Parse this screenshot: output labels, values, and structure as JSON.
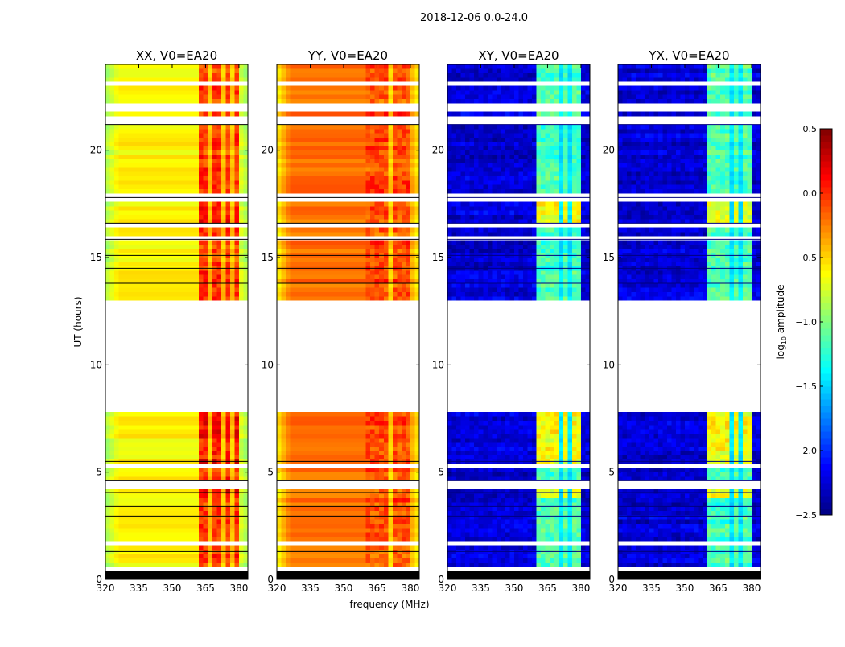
{
  "chart_data": {
    "type": "heatmap",
    "suptitle": "2018-12-06 0.0-24.0",
    "xlabel": "frequency (MHz)",
    "ylabel": "UT (hours)",
    "xlim": [
      320,
      384
    ],
    "ylim": [
      0,
      24
    ],
    "x_ticks": [
      320,
      335,
      350,
      365,
      380
    ],
    "y_ticks": [
      0,
      5,
      10,
      15,
      20
    ],
    "colorbar": {
      "label": "log₁₀ amplitude",
      "label_main": "log",
      "label_sub": "10",
      "label_rest": " amplitude",
      "colormap": "jet",
      "vmin": -2.5,
      "vmax": 0.5,
      "ticks": [
        0.5,
        0.0,
        -0.5,
        -1.0,
        -1.5,
        -2.0,
        -2.5
      ],
      "tick_labels": [
        "0.5",
        "0.0",
        "−0.5",
        "−1.0",
        "−1.5",
        "−2.0",
        "−2.5"
      ]
    },
    "data_segments_hours": [
      [
        0.55,
        7.75
      ],
      [
        13.0,
        15.85
      ],
      [
        16.0,
        21.2
      ],
      [
        21.55,
        21.75
      ],
      [
        22.25,
        24.0
      ]
    ],
    "flagged_white_hours": [
      [
        5.13,
        5.5
      ],
      [
        4.3,
        4.55
      ],
      [
        1.2,
        1.3
      ],
      [
        1.7,
        1.8
      ],
      [
        2.0,
        2.08
      ],
      [
        3.0,
        3.07
      ],
      [
        3.2,
        3.28
      ],
      [
        0.85,
        0.9
      ],
      [
        13.5,
        13.6
      ],
      [
        14.2,
        14.27
      ],
      [
        17.6,
        18.0
      ],
      [
        18.5,
        18.56
      ],
      [
        19.2,
        19.26
      ],
      [
        23.0,
        23.1
      ],
      [
        23.2,
        23.28
      ],
      [
        16.4,
        16.5
      ]
    ],
    "masked_black_hours": [
      [
        0.05,
        0.35
      ]
    ],
    "black_lines_hours": [
      1.3,
      2.95,
      3.4,
      4.05,
      4.6,
      5.5,
      13.8,
      14.5,
      15.1,
      15.85,
      16.6,
      17.8,
      21.2
    ],
    "panels": [
      {
        "title": "XX, V0=EA20",
        "base": -0.6,
        "edge": -0.9,
        "band": -0.05,
        "band_range": [
          363,
          380
        ],
        "band_gaps": [
          367.5,
          372.5,
          377.5
        ],
        "night_boost": 0.15
      },
      {
        "title": "YY, V0=EA20",
        "base": -0.2,
        "edge": -0.6,
        "band": -0.1,
        "band_range": [
          361,
          380
        ],
        "band_gaps": [
          366,
          371,
          376
        ],
        "night_boost": 0.0
      },
      {
        "title": "XY, V0=EA20",
        "base": -2.3,
        "edge": -2.3,
        "band": -1.15,
        "band_range": [
          361,
          380
        ],
        "band_gaps": [
          366,
          370.5,
          375.5
        ],
        "night_boost": 0.5
      },
      {
        "title": "YX, V0=EA20",
        "base": -2.3,
        "edge": -2.3,
        "band": -1.15,
        "band_range": [
          361,
          380
        ],
        "band_gaps": [
          366,
          370.5,
          375.5
        ],
        "night_boost": 0.5
      }
    ]
  }
}
